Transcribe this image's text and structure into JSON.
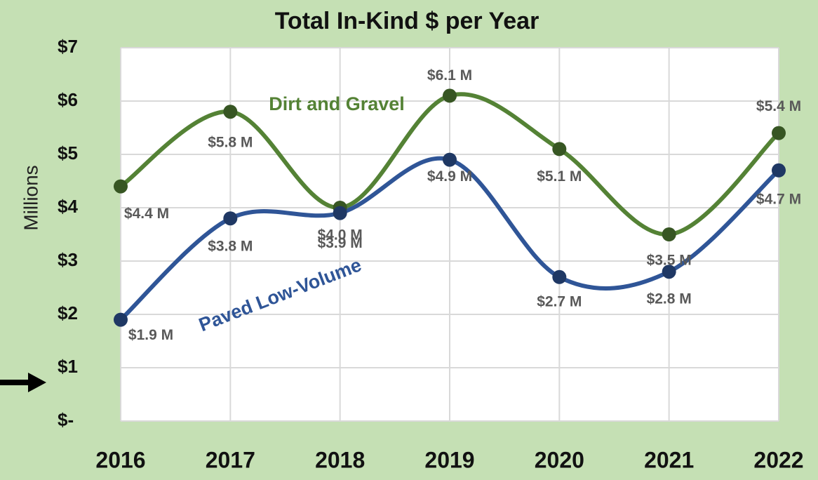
{
  "chart_data": {
    "type": "line",
    "title": "Total In-Kind $ per Year",
    "y_label": "Millions",
    "categories": [
      "2016",
      "2017",
      "2018",
      "2019",
      "2020",
      "2021",
      "2022"
    ],
    "series": [
      {
        "name": "Dirt and Gravel",
        "color": "#548235",
        "values": [
          4.4,
          5.8,
          4.0,
          6.1,
          5.1,
          3.5,
          5.4
        ],
        "value_labels": [
          "$4.4 M",
          "$5.8 M",
          "$4.0 M",
          "$6.1 M",
          "$5.1 M",
          "$3.5 M",
          "$5.4 M"
        ]
      },
      {
        "name": "Paved Low-Volume",
        "color": "#2f5597",
        "values": [
          1.9,
          3.8,
          3.9,
          4.9,
          2.7,
          2.8,
          4.7
        ],
        "value_labels": [
          "$1.9 M",
          "$3.8 M",
          "$3.9 M",
          "$4.9 M",
          "$2.7 M",
          "$2.8 M",
          "$4.7 M"
        ]
      }
    ],
    "ylim": [
      0,
      7
    ],
    "yticks": [
      {
        "value": 0,
        "label": "$-"
      },
      {
        "value": 1,
        "label": "$1"
      },
      {
        "value": 2,
        "label": "$2"
      },
      {
        "value": 3,
        "label": "$3"
      },
      {
        "value": 4,
        "label": "$4"
      },
      {
        "value": 5,
        "label": "$5"
      },
      {
        "value": 6,
        "label": "$6"
      },
      {
        "value": 7,
        "label": "$7"
      }
    ],
    "grid": true
  }
}
